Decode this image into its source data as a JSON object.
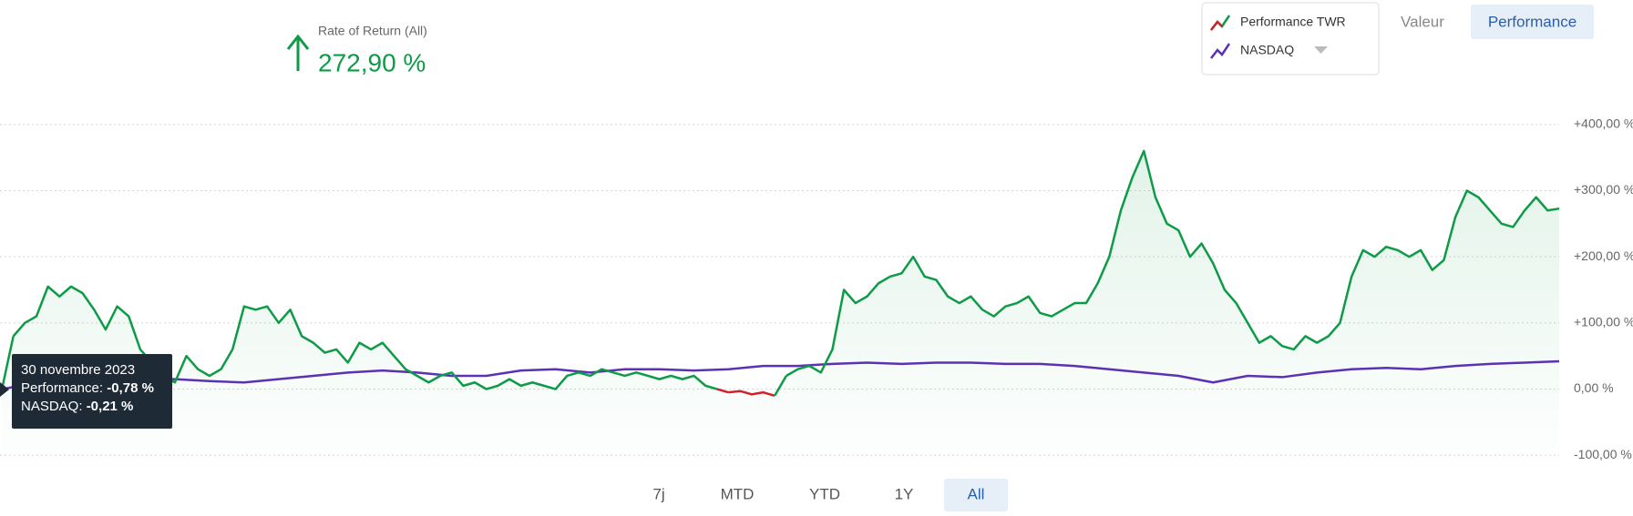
{
  "header": {
    "label": "Rate of Return (All)",
    "value": "272,90 %"
  },
  "view_buttons": [
    {
      "label": "Valeur",
      "active": false
    },
    {
      "label": "Performance",
      "active": true
    }
  ],
  "range_buttons": [
    {
      "label": "7j",
      "active": false
    },
    {
      "label": "MTD",
      "active": false
    },
    {
      "label": "YTD",
      "active": false
    },
    {
      "label": "1Y",
      "active": false
    },
    {
      "label": "All",
      "active": true
    }
  ],
  "tooltip": {
    "date": "30 novembre 2023",
    "rows": [
      {
        "label": "Performance:",
        "value": "-0,78 %"
      },
      {
        "label": "NASDAQ:",
        "value": "-0,21 %"
      }
    ]
  },
  "chart_data": {
    "type": "line",
    "series": [
      {
        "name": "Performance TWR",
        "color": "#0e9b47",
        "negative_color": "#d0212b",
        "values": [
          -0.78,
          80,
          100,
          110,
          155,
          140,
          155,
          145,
          120,
          90,
          125,
          110,
          60,
          40,
          20,
          10,
          50,
          30,
          20,
          30,
          60,
          125,
          120,
          125,
          100,
          120,
          80,
          70,
          55,
          60,
          40,
          70,
          60,
          70,
          50,
          30,
          20,
          10,
          20,
          25,
          5,
          10,
          0,
          5,
          15,
          5,
          10,
          5,
          0,
          20,
          25,
          20,
          30,
          25,
          20,
          25,
          20,
          15,
          20,
          15,
          20,
          5,
          0,
          -5,
          -3,
          -8,
          -5,
          -10,
          20,
          30,
          35,
          25,
          60,
          150,
          130,
          140,
          160,
          170,
          175,
          200,
          170,
          165,
          140,
          130,
          140,
          120,
          110,
          125,
          130,
          140,
          115,
          110,
          120,
          130,
          130,
          160,
          200,
          270,
          320,
          360,
          290,
          250,
          240,
          200,
          220,
          190,
          150,
          130,
          100,
          70,
          80,
          65,
          60,
          80,
          70,
          80,
          100,
          170,
          210,
          200,
          215,
          210,
          200,
          210,
          180,
          195,
          260,
          300,
          290,
          270,
          250,
          245,
          270,
          290,
          270,
          272.9
        ]
      },
      {
        "name": "NASDAQ",
        "color": "#5b32b4",
        "values": [
          -0.21,
          10,
          12,
          10,
          15,
          15,
          12,
          10,
          15,
          20,
          25,
          28,
          25,
          20,
          20,
          28,
          30,
          25,
          30,
          30,
          28,
          30,
          35,
          35,
          38,
          40,
          38,
          40,
          40,
          38,
          38,
          35,
          30,
          25,
          20,
          10,
          20,
          18,
          25,
          30,
          32,
          30,
          35,
          38,
          40,
          42
        ]
      }
    ],
    "ylim": [
      -130,
      430
    ],
    "yticks": [
      {
        "value": -100,
        "label": "-100,00 %"
      },
      {
        "value": 0,
        "label": "0,00 %"
      },
      {
        "value": 100,
        "label": "+100,00 %"
      },
      {
        "value": 200,
        "label": "+200,00 %"
      },
      {
        "value": 300,
        "label": "+300,00 %"
      },
      {
        "value": 400,
        "label": "+400,00 %"
      }
    ],
    "grid": true
  }
}
